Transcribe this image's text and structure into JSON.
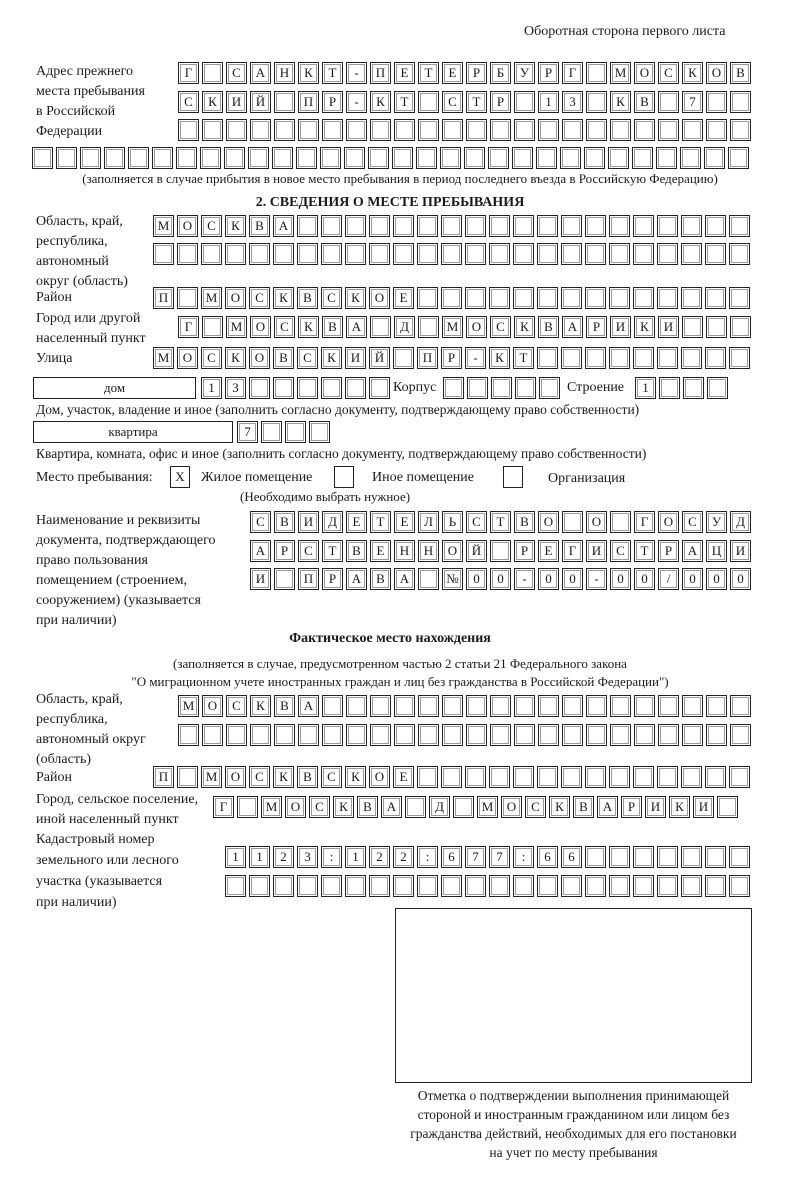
{
  "header": {
    "page_side": "Оборотная сторона первого листа"
  },
  "prev_address": {
    "label": [
      "Адрес прежнего",
      "места пребывания",
      "в Российской",
      "Федерации"
    ],
    "rows": [
      "Г САНКТ-ПЕТЕРБУРГ МОСКОВ",
      "СКИЙ ПР-КТ СТР 13 КВ 7  ",
      "                        ",
      "                              "
    ],
    "note": "(заполняется в случае прибытия в новое место пребывания в период последнего въезда в Российскую Федерацию)"
  },
  "section2": {
    "title": "2. СВЕДЕНИЯ О МЕСТЕ ПРЕБЫВАНИЯ",
    "region_label": [
      "Область, край,",
      "республика,",
      "автономный",
      "округ (область)"
    ],
    "region_rows": [
      "МОСКВА                   ",
      "                         "
    ],
    "district_label": "Район",
    "district_row": "П МОСКВСКОЕ              ",
    "city_label": [
      "Город или другой",
      "населенный пункт"
    ],
    "city_row": "Г МОСКВА Д МОСКВАРИКИ   ",
    "street_label": "Улица",
    "street_row": "МОСКОВСКИЙ ПР-КТ         ",
    "house_type": "дом",
    "house_row": "13      ",
    "korpus_label": "Корпус",
    "korpus_row": "     ",
    "building_label": "Строение",
    "building_row": "1   ",
    "house_note": "Дом, участок, владение и иное (заполнить согласно документу, подтверждающему право собственности)",
    "apt_type": "квартира",
    "apt_row": "7   ",
    "apt_note": "Квартира, комната, офис и иное (заполнить согласно документу, подтверждающему право собственности)",
    "stay_label": "Место пребывания:",
    "stay_options": [
      {
        "label": "Жилое помещение",
        "mark": "X",
        "checked": true
      },
      {
        "label": "Иное помещение",
        "mark": "",
        "checked": false
      },
      {
        "label": "Организация",
        "mark": "",
        "checked": false
      }
    ],
    "stay_note": "(Необходимо выбрать нужное)",
    "doc_label": [
      "Наименование и реквизиты",
      "документа, подтверждающего",
      "право пользования",
      "помещением (строением,",
      "сооружением) (указывается",
      "при наличии)"
    ],
    "doc_rows": [
      "СВИДЕТЕЛЬСТВО О ГОСУД",
      "АРСТВЕННОЙ РЕГИСТРАЦИ",
      "И ПРАВА №00-00-00/000"
    ]
  },
  "actual": {
    "title": "Фактическое место нахождения",
    "note": [
      "(заполняется в случае, предусмотренном частью 2 статьи 21 Федерального закона",
      "\"О миграционном учете иностранных граждан и лиц без гражданства в Российской Федерации\")"
    ],
    "region_label": [
      "Область, край,",
      "республика,",
      "автономный округ",
      "(область)"
    ],
    "region_rows": [
      "МОСКВА                  ",
      "                        "
    ],
    "district_label": "Район",
    "district_row": "П МОСКВСКОЕ              ",
    "city_label": [
      "Город, сельское поселение,",
      "иной населенный пункт"
    ],
    "city_row": "Г МОСКВА Д МОСКВАРИКИ ",
    "cadastre_label": [
      "Кадастровый номер",
      "земельного или лесного",
      "участка (указывается",
      "при наличии)"
    ],
    "cadastre_rows": [
      "1123:122:677:66       ",
      "                      "
    ]
  },
  "stamp": {
    "caption": [
      "Отметка о подтверждении выполнения принимающей",
      "стороной и иностранным гражданином или лицом без",
      "гражданства действий, необходимых для его постановки",
      "на учет по месту пребывания"
    ]
  }
}
